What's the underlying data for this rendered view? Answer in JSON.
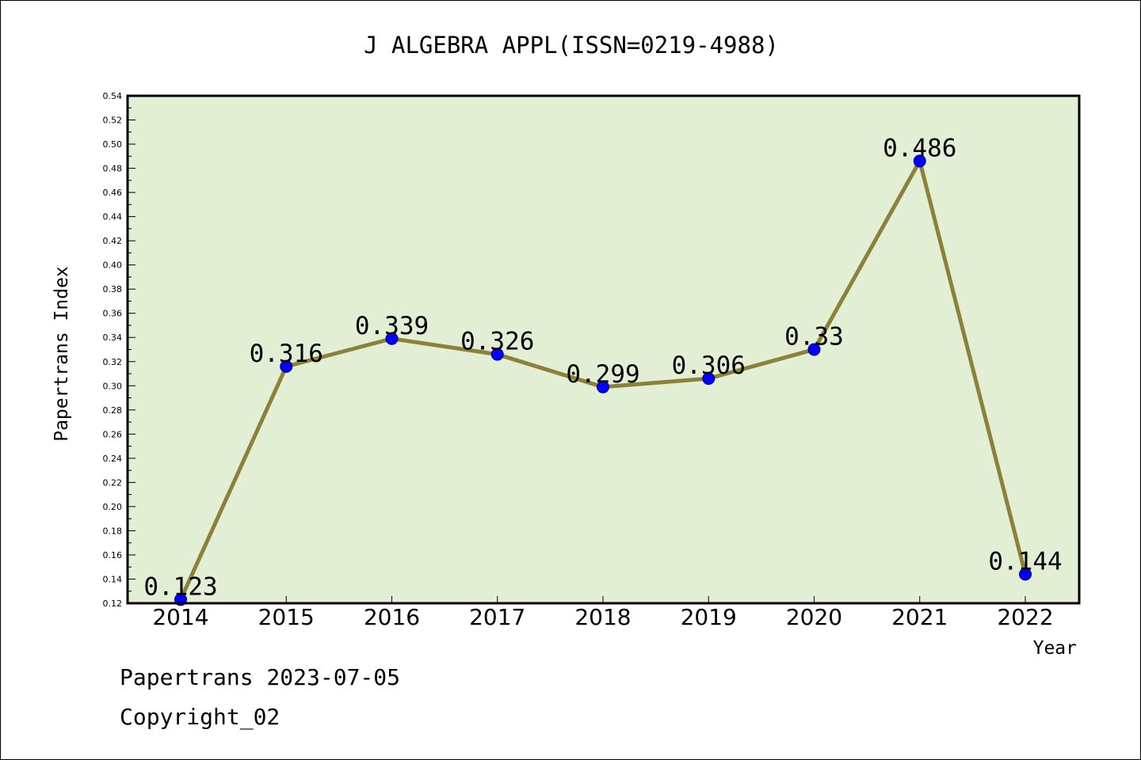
{
  "chart_data": {
    "type": "line",
    "title": "J ALGEBRA APPL(ISSN=0219-4988)",
    "xlabel": "Year",
    "ylabel": "Papertrans Index",
    "categories": [
      "2014",
      "2015",
      "2016",
      "2017",
      "2018",
      "2019",
      "2020",
      "2021",
      "2022"
    ],
    "series": [
      {
        "values": [
          0.123,
          0.316,
          0.339,
          0.326,
          0.299,
          0.306,
          0.33,
          0.486,
          0.144
        ],
        "data_labels": [
          "0.123",
          "0.316",
          "0.339",
          "0.326",
          "0.299",
          "0.306",
          "0.33",
          "0.486",
          "0.144"
        ]
      }
    ],
    "ylim": [
      0.12,
      0.54
    ],
    "yticks": [
      "0.12",
      "0.14",
      "0.16",
      "0.18",
      "0.20",
      "0.22",
      "0.24",
      "0.26",
      "0.28",
      "0.30",
      "0.32",
      "0.34",
      "0.36",
      "0.38",
      "0.40",
      "0.42",
      "0.44",
      "0.46",
      "0.48",
      "0.50",
      "0.52",
      "0.54"
    ],
    "grid": false,
    "colors": {
      "plot_background": "#e2efd4",
      "line": "#8c8138",
      "marker": "#0000ff"
    }
  },
  "footer": {
    "date_line": "Papertrans 2023-07-05",
    "copyright": "Copyright_02"
  }
}
